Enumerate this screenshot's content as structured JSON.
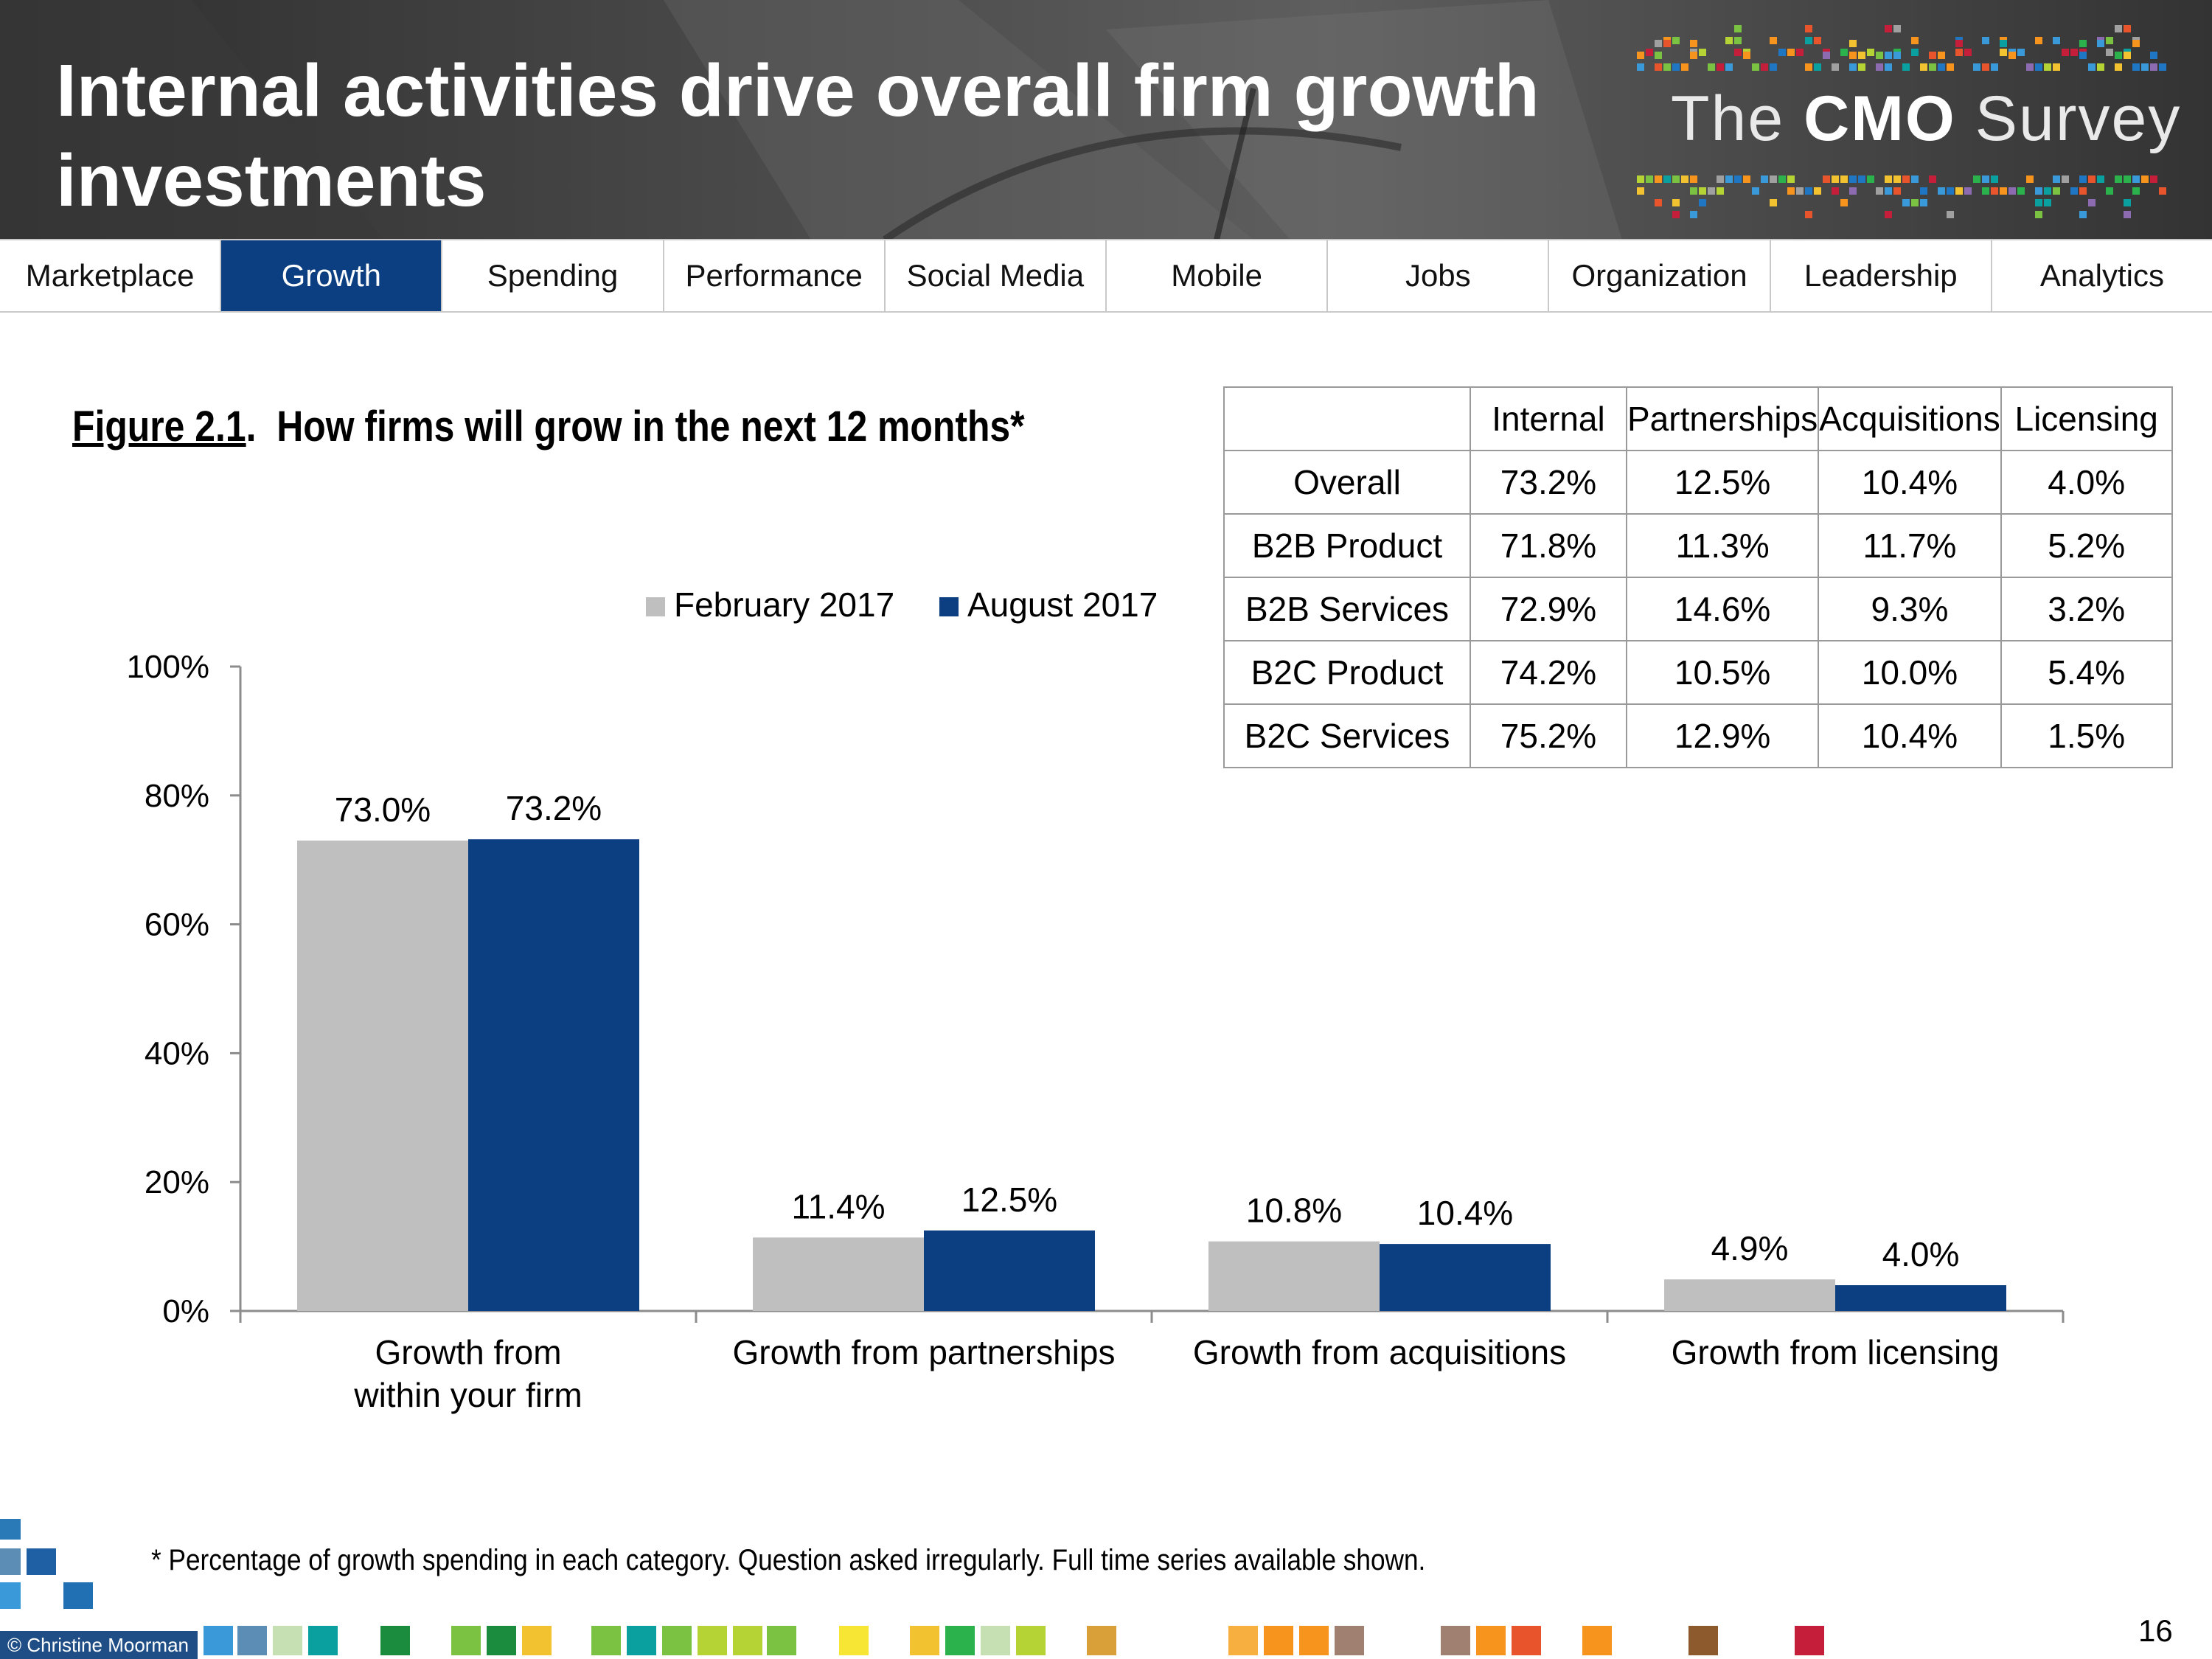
{
  "header": {
    "title": "Internal activities drive overall firm growth investments",
    "logo": {
      "prefix": "The",
      "brand": "CMO",
      "suffix": "Survey"
    }
  },
  "nav": {
    "tabs": [
      {
        "label": "Marketplace",
        "active": false
      },
      {
        "label": "Growth",
        "active": true
      },
      {
        "label": "Spending",
        "active": false
      },
      {
        "label": "Performance",
        "active": false
      },
      {
        "label": "Social Media",
        "active": false
      },
      {
        "label": "Mobile",
        "active": false
      },
      {
        "label": "Jobs",
        "active": false
      },
      {
        "label": "Organization",
        "active": false
      },
      {
        "label": "Leadership",
        "active": false
      },
      {
        "label": "Analytics",
        "active": false
      }
    ]
  },
  "figure": {
    "number": "Figure 2.1",
    "title": "How firms will grow in the next 12 months*"
  },
  "table": {
    "headers": [
      "",
      "Internal",
      "Partnerships",
      "Acquisitions",
      "Licensing"
    ],
    "rows": [
      [
        "Overall",
        "73.2%",
        "12.5%",
        "10.4%",
        "4.0%"
      ],
      [
        "B2B Product",
        "71.8%",
        "11.3%",
        "11.7%",
        "5.2%"
      ],
      [
        "B2B  Services",
        "72.9%",
        "14.6%",
        "9.3%",
        "3.2%"
      ],
      [
        "B2C Product",
        "74.2%",
        "10.5%",
        "10.0%",
        "5.4%"
      ],
      [
        "B2C  Services",
        "75.2%",
        "12.9%",
        "10.4%",
        "1.5%"
      ]
    ]
  },
  "chart_data": {
    "type": "bar",
    "categories": [
      [
        "Growth from",
        "within your firm"
      ],
      [
        "Growth from partnerships"
      ],
      [
        "Growth from acquisitions"
      ],
      [
        "Growth from licensing"
      ]
    ],
    "series": [
      {
        "name": "February 2017",
        "color": "#bfbfbf",
        "values": [
          73.0,
          11.4,
          10.8,
          4.9
        ],
        "labels": [
          "73.0%",
          "11.4%",
          "10.8%",
          "4.9%"
        ]
      },
      {
        "name": "August 2017",
        "color": "#0b3f82",
        "values": [
          73.2,
          12.5,
          10.4,
          4.0
        ],
        "labels": [
          "73.2%",
          "12.5%",
          "10.4%",
          "4.0%"
        ]
      }
    ],
    "yticks": [
      "0%",
      "20%",
      "40%",
      "60%",
      "80%",
      "100%"
    ],
    "ylim": [
      0,
      100
    ],
    "legend_position": "top-right",
    "grid": false
  },
  "footnote": "* Percentage of growth spending in each category. Question asked irregularly. Full time series available shown.",
  "footer": {
    "copyright": "© Christine Moorman",
    "page_number": "16"
  }
}
